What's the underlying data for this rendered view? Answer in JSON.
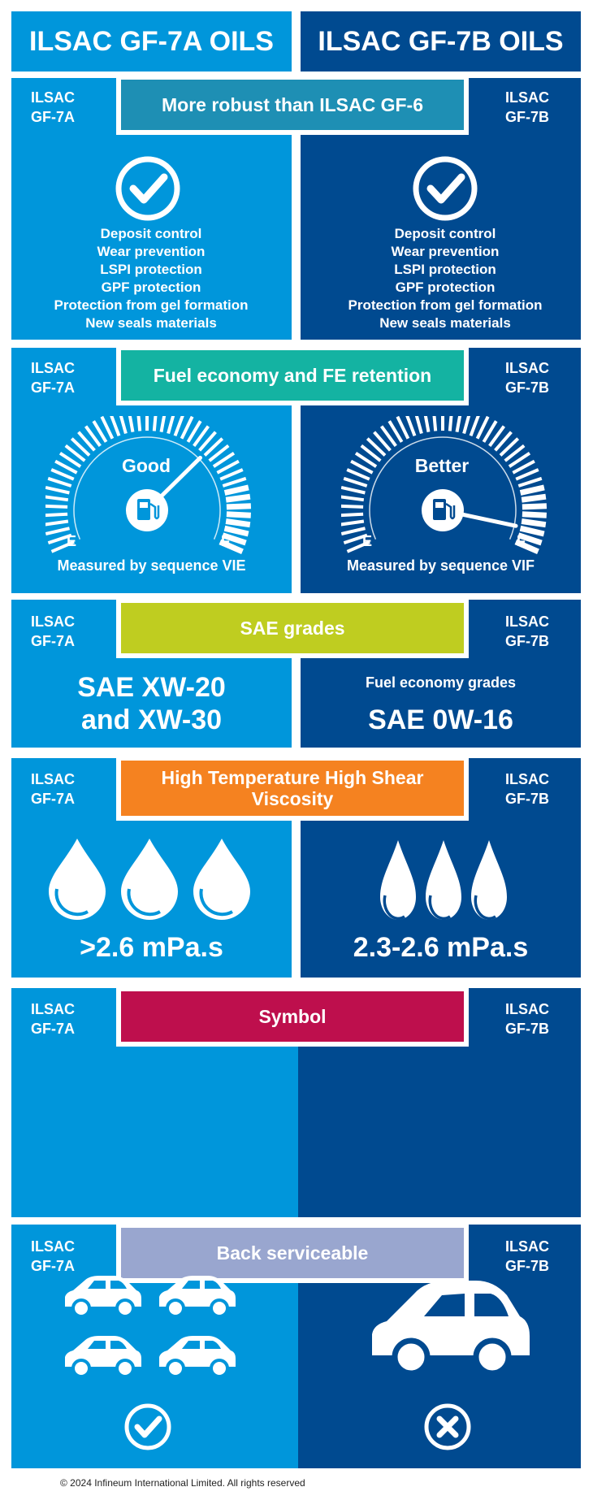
{
  "header": {
    "left_title": "ILSAC GF-7A OILS",
    "right_title": "ILSAC GF-7B OILS"
  },
  "tags": {
    "left": [
      "ILSAC",
      "GF-7A"
    ],
    "right": [
      "ILSAC",
      "GF-7B"
    ]
  },
  "colors": {
    "left_bg": "#0096db",
    "right_bg": "#004a90",
    "band_robust": "#1e8fb4",
    "band_fuel": "#14b3a2",
    "band_sae": "#bfcd20",
    "band_hths": "#f58220",
    "band_symbol": "#be0f4d",
    "band_back": "#99a6cf"
  },
  "robust": {
    "title": "More robust than ILSAC GF-6",
    "left_icon": "check-circle-icon",
    "right_icon": "check-circle-icon",
    "items": [
      "Deposit control",
      "Wear prevention",
      "LSPI protection",
      "GPF protection",
      "Protection from gel formation",
      "New seals materials"
    ]
  },
  "fuel": {
    "title": "Fuel economy and FE retention",
    "left": {
      "rating": "Good",
      "empty": "E",
      "full": "F",
      "caption": "Measured by sequence VIE",
      "level": 0.7
    },
    "right": {
      "rating": "Better",
      "empty": "E",
      "full": "F",
      "caption": "Measured by sequence VIF",
      "level": 0.95
    },
    "icon": "fuel-pump-icon"
  },
  "sae": {
    "title": "SAE grades",
    "left_line1": "SAE XW-20",
    "left_line2": "and XW-30",
    "right_sub": "Fuel economy grades",
    "right_main": "SAE 0W-16"
  },
  "hths": {
    "title": "High Temperature High Shear Viscosity",
    "left_value": ">2.6 mPa.s",
    "right_value": "2.3-2.6 mPa.s",
    "left_drops": 3,
    "right_drops": 3,
    "icon": "oil-drop-icon"
  },
  "symbol": {
    "title": "Symbol"
  },
  "back": {
    "title": "Back serviceable",
    "left_icon": "check-circle-icon",
    "right_icon": "x-circle-icon",
    "left_cars": 4,
    "right_cars": 1,
    "car_icon": "car-icon"
  },
  "footer": "© 2024 Infineum International Limited. All rights reserved"
}
